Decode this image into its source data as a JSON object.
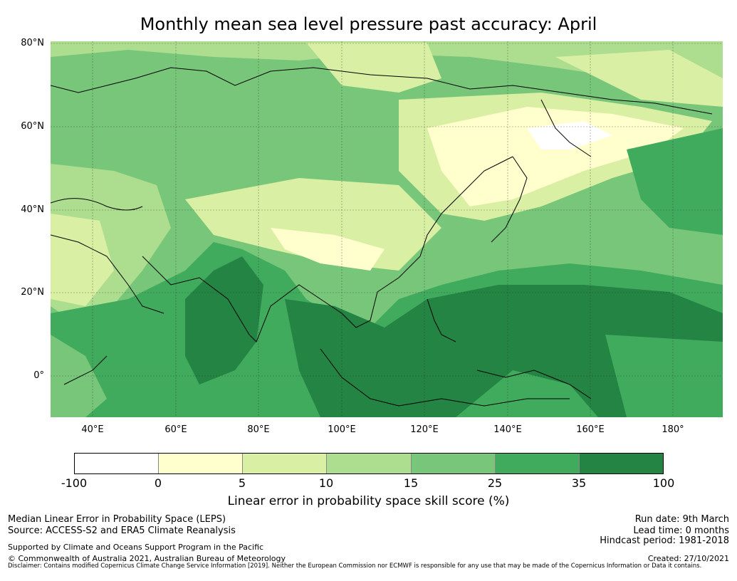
{
  "title": "Monthly mean sea level pressure past accuracy: April",
  "map": {
    "lat_labels": [
      "80°N",
      "60°N",
      "40°N",
      "20°N",
      "0°"
    ],
    "lon_labels": [
      "40°E",
      "60°E",
      "80°E",
      "100°E",
      "120°E",
      "140°E",
      "160°E",
      "180°"
    ],
    "lat_range": [
      -10,
      80
    ],
    "lon_range": [
      30,
      192
    ],
    "categories": [
      {
        "range": "-100 to 0",
        "color": "#ffffff"
      },
      {
        "range": "0 to 5",
        "color": "#fffecc"
      },
      {
        "range": "5 to 10",
        "color": "#d9efa3"
      },
      {
        "range": "10 to 15",
        "color": "#addd8e"
      },
      {
        "range": "15 to 25",
        "color": "#78c679"
      },
      {
        "range": "25 to 35",
        "color": "#41ab5d"
      },
      {
        "range": "35 to 100",
        "color": "#238443"
      }
    ]
  },
  "colorbar": {
    "ticks": [
      "-100",
      "0",
      "5",
      "10",
      "15",
      "25",
      "35",
      "100"
    ],
    "label": "Linear error in probability space skill score (%)"
  },
  "footer": {
    "left1": "Median Linear Error in Probability Space (LEPS)",
    "left2": "Source: ACCESS-S2 and ERA5 Climate Reanalysis",
    "left3": "Supported by Climate and Oceans Support Program in the Pacific",
    "left4": "© Commonwealth of Australia 2021, Australian Bureau of Meteorology",
    "right1": "Run date: 9th March",
    "right2": "Lead time: 0 months",
    "right3": "Hindcast period: 1981-2018",
    "right4": "Created: 27/10/2021",
    "disclaimer": "Disclaimer: Contains modified Copernicus Climate Change Service Information [2019]. Neither the European Commission nor ECMWF is responsible for any use that may be made of the Copernicus Information or Data it contains."
  }
}
